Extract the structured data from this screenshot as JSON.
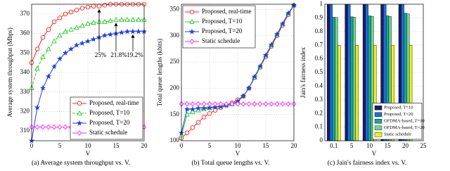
{
  "chart_data": [
    {
      "type": "line",
      "caption": "(a) Average system throughput vs. V.",
      "xlabel": "V",
      "ylabel": "Average system throughput (Mbps)",
      "x": [
        0,
        1,
        2,
        3,
        4,
        5,
        6,
        7,
        8,
        9,
        10,
        11,
        12,
        13,
        14,
        15,
        16,
        17,
        18,
        19,
        20
      ],
      "xlim": [
        0,
        20
      ],
      "xticks": [
        0,
        5,
        10,
        15,
        20
      ],
      "ylim": [
        305,
        375
      ],
      "yticks": [
        310,
        320,
        330,
        340,
        350,
        360,
        370
      ],
      "grid": true,
      "legend": "lower right",
      "series": [
        {
          "name": "Proposed, real-time",
          "color": "#ff2020",
          "marker": "circle",
          "linestyle": "solid",
          "values": [
            345,
            352,
            358,
            362,
            366,
            368,
            370,
            371,
            372,
            373,
            373.5,
            374,
            374,
            374.5,
            375,
            375,
            375,
            375,
            375,
            375,
            375
          ]
        },
        {
          "name": "Proposed, T=10",
          "color": "#22cc22",
          "marker": "triangle",
          "linestyle": "dashed",
          "values": [
            332,
            342,
            348,
            352,
            356,
            359,
            361,
            362,
            363,
            364,
            365,
            365.5,
            366,
            366,
            366.5,
            367,
            367,
            367,
            367,
            367,
            367
          ]
        },
        {
          "name": "Proposed, T=20",
          "color": "#2040e0",
          "marker": "star",
          "linestyle": "solid",
          "values": [
            305,
            322,
            332,
            338,
            343,
            347,
            350,
            352,
            354,
            355,
            356,
            357,
            358,
            359,
            359.5,
            360,
            360.5,
            361,
            361,
            361,
            361
          ]
        },
        {
          "name": "Static schedule",
          "color": "#ff20ff",
          "marker": "diamond",
          "linestyle": "solid",
          "values": [
            312,
            312,
            312,
            312,
            312,
            312,
            312,
            312,
            312,
            312,
            312,
            312,
            312,
            312,
            312,
            312,
            312,
            312,
            312,
            312,
            312
          ]
        }
      ],
      "annotations": [
        "25%",
        "21.8%",
        "19.2%"
      ]
    },
    {
      "type": "line",
      "caption": "(b) Total queue lengths vs. V.",
      "xlabel": "V",
      "ylabel": "Total queue lengths (kbits)",
      "x": [
        0,
        1,
        2,
        3,
        4,
        5,
        6,
        7,
        8,
        9,
        10,
        11,
        12,
        13,
        14,
        15,
        16,
        17,
        18,
        19,
        20
      ],
      "xlim": [
        0,
        20
      ],
      "xticks": [
        0,
        5,
        10,
        15,
        20
      ],
      "ylim": [
        100,
        360
      ],
      "yticks": [
        100,
        150,
        200,
        250,
        300,
        350
      ],
      "grid": true,
      "legend": "upper left",
      "series": [
        {
          "name": "Proposed, real-time",
          "color": "#ff2020",
          "marker": "circle",
          "linestyle": "solid",
          "values": [
            105,
            115,
            125,
            135,
            145,
            152,
            158,
            163,
            168,
            172,
            178,
            185,
            200,
            220,
            240,
            260,
            280,
            300,
            320,
            340,
            358
          ]
        },
        {
          "name": "Proposed, T=10",
          "color": "#22cc22",
          "marker": "triangle",
          "linestyle": "solid",
          "values": [
            110,
            150,
            155,
            158,
            160,
            162,
            164,
            166,
            168,
            170,
            175,
            185,
            200,
            220,
            240,
            262,
            282,
            302,
            322,
            342,
            358
          ]
        },
        {
          "name": "Proposed, T=20",
          "color": "#2040e0",
          "marker": "star",
          "linestyle": "solid",
          "values": [
            115,
            160,
            160,
            162,
            162,
            163,
            164,
            165,
            167,
            170,
            175,
            185,
            200,
            222,
            242,
            263,
            283,
            303,
            323,
            343,
            358
          ]
        },
        {
          "name": "Static schedule",
          "color": "#ff20ff",
          "marker": "diamond",
          "linestyle": "solid",
          "values": [
            170,
            170,
            170,
            170,
            170,
            170,
            170,
            170,
            170,
            170,
            170,
            170,
            170,
            170,
            170,
            170,
            170,
            170,
            170,
            170,
            170
          ]
        }
      ]
    },
    {
      "type": "bar",
      "caption": "(c) Jain's fairness index vs. V.",
      "xlabel": "V",
      "ylabel": "Jain's fairness index",
      "categories": [
        "0.1",
        "5",
        "10",
        "15",
        "20",
        "25"
      ],
      "ylim": [
        0,
        1
      ],
      "yticks": [
        0,
        0.1,
        0.2,
        0.3,
        0.4,
        0.5,
        0.6,
        0.7,
        0.8,
        0.9,
        1
      ],
      "grid": true,
      "legend": "lower right",
      "series": [
        {
          "name": "Proposed, T=10",
          "color": "#1a1a6e",
          "values": [
            0.999,
            0.999,
            0.999,
            0.999,
            0.999,
            null
          ]
        },
        {
          "name": "Proposed, T=20",
          "color": "#1f6fd0",
          "values": [
            0.998,
            0.998,
            0.998,
            0.998,
            0.998,
            null
          ]
        },
        {
          "name": "OFDMA-based, T=10",
          "color": "#1aa39a",
          "values": [
            0.905,
            0.908,
            0.915,
            0.915,
            0.935,
            null
          ]
        },
        {
          "name": "OFDMA-based, T=20",
          "color": "#6fd68a",
          "values": [
            0.903,
            0.905,
            0.912,
            0.91,
            0.93,
            null
          ]
        },
        {
          "name": "Static schedule",
          "color": "#f5ee1a",
          "values": [
            0.7,
            0.7,
            0.7,
            0.7,
            0.7,
            null
          ]
        }
      ]
    }
  ]
}
